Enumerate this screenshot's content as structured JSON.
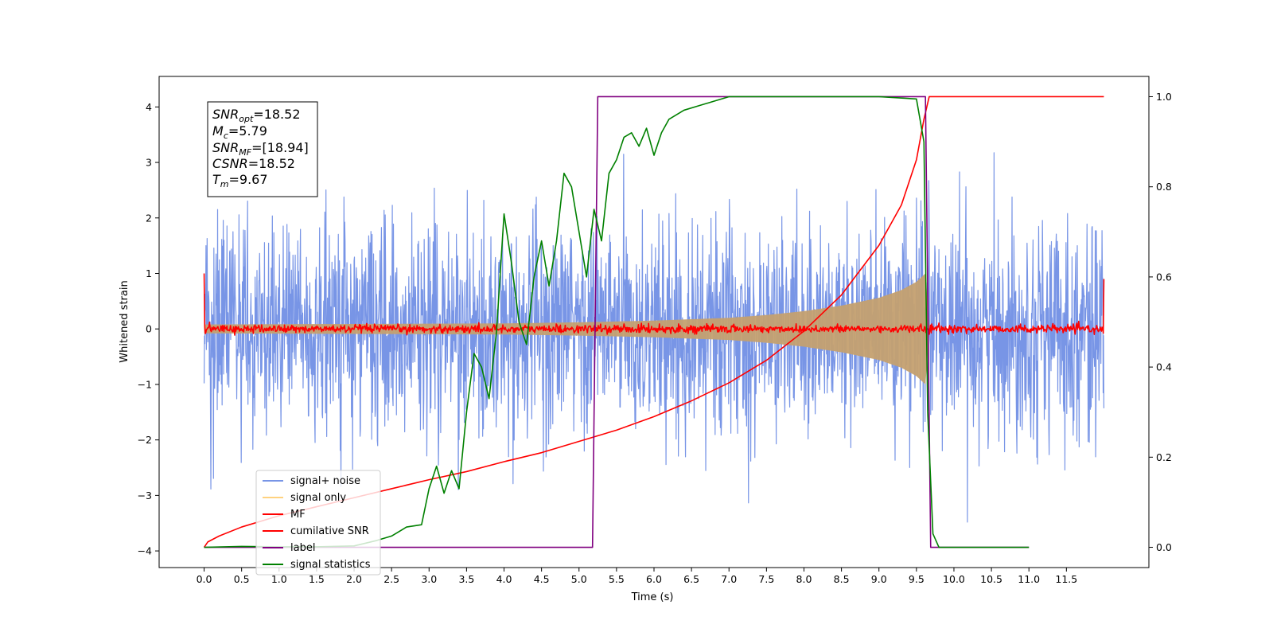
{
  "chart_data": {
    "type": "line",
    "title": "",
    "xlabel": "Time (s)",
    "ylabel": "Whitened strain",
    "xlim": [
      -0.6,
      12.6
    ],
    "ylim": [
      -4.3,
      4.55
    ],
    "y2lim": [
      -0.045,
      1.045
    ],
    "x_ticks": [
      0.0,
      0.5,
      1.0,
      1.5,
      2.0,
      2.5,
      3.0,
      3.5,
      4.0,
      4.5,
      5.0,
      5.5,
      6.0,
      6.5,
      7.0,
      7.5,
      8.0,
      8.5,
      9.0,
      9.5,
      10.0,
      10.5,
      11.0,
      11.5
    ],
    "x_tick_labels": [
      "0.0",
      "0.5",
      "1.0",
      "1.5",
      "2.0",
      "2.5",
      "3.0",
      "3.5",
      "4.0",
      "4.5",
      "5.0",
      "5.5",
      "6.0",
      "6.5",
      "7.0",
      "7.5",
      "8.0",
      "8.5",
      "9.0",
      "9.5",
      "10.0",
      "10.5",
      "11.0",
      "11.5"
    ],
    "y_ticks": [
      -4,
      -3,
      -2,
      -1,
      0,
      1,
      2,
      3,
      4
    ],
    "y_tick_labels": [
      "−4",
      "−3",
      "−2",
      "−1",
      "0",
      "1",
      "2",
      "3",
      "4"
    ],
    "y2_ticks": [
      0.0,
      0.2,
      0.4,
      0.6,
      0.8,
      1.0
    ],
    "y2_tick_labels": [
      "0.0",
      "0.2",
      "0.4",
      "0.6",
      "0.8",
      "1.0"
    ],
    "grid": false,
    "legend_position": "lower-left",
    "stats_box": {
      "snr_opt": {
        "base": "SNR",
        "sub": "opt",
        "value": "=18.52"
      },
      "mc": {
        "base": "M",
        "sub": "c",
        "value": "=5.79"
      },
      "snr_mf": {
        "base": "SNR",
        "sub": "MF",
        "value": "=[18.94]"
      },
      "csnr": {
        "base": "CSNR",
        "sub": "",
        "value": "=18.52"
      },
      "tm": {
        "base": "T",
        "sub": "m",
        "value": "=9.67"
      }
    },
    "series": [
      {
        "name": "signal+ noise",
        "color": "#7895e6",
        "axis": "left",
        "description_values": {
          "x_start": 0.0,
          "x_end": 12.0,
          "typical_range": [
            -2.0,
            2.2
          ],
          "peak_max": 4.15,
          "peak_min": -3.85
        }
      },
      {
        "name": "signal only",
        "color": "#c4a070",
        "axis": "left",
        "envelope_points": [
          [
            0.0,
            0.08
          ],
          [
            2.0,
            0.09
          ],
          [
            4.0,
            0.1
          ],
          [
            5.0,
            0.12
          ],
          [
            6.0,
            0.15
          ],
          [
            7.0,
            0.2
          ],
          [
            7.5,
            0.25
          ],
          [
            8.0,
            0.32
          ],
          [
            8.5,
            0.42
          ],
          [
            9.0,
            0.56
          ],
          [
            9.3,
            0.7
          ],
          [
            9.5,
            0.85
          ],
          [
            9.62,
            1.0
          ],
          [
            9.67,
            0.1
          ],
          [
            9.7,
            0.0
          ]
        ]
      },
      {
        "name": "MF",
        "color": "#ff0000",
        "axis": "left",
        "description_values": {
          "x_start": 0.0,
          "x_end": 12.0,
          "level": 0.0,
          "noise_amplitude": 0.06,
          "start_value": 1.0,
          "end_value": 0.9
        }
      },
      {
        "name": "cumilative SNR",
        "color": "#ff0000",
        "axis": "right",
        "points": [
          [
            0.0,
            0.0
          ],
          [
            0.05,
            0.012
          ],
          [
            0.2,
            0.025
          ],
          [
            0.5,
            0.045
          ],
          [
            1.0,
            0.07
          ],
          [
            1.5,
            0.09
          ],
          [
            2.0,
            0.11
          ],
          [
            2.5,
            0.13
          ],
          [
            3.0,
            0.15
          ],
          [
            3.5,
            0.168
          ],
          [
            4.0,
            0.19
          ],
          [
            4.5,
            0.21
          ],
          [
            5.0,
            0.235
          ],
          [
            5.5,
            0.26
          ],
          [
            6.0,
            0.29
          ],
          [
            6.5,
            0.325
          ],
          [
            7.0,
            0.365
          ],
          [
            7.5,
            0.415
          ],
          [
            8.0,
            0.48
          ],
          [
            8.5,
            0.56
          ],
          [
            9.0,
            0.67
          ],
          [
            9.3,
            0.76
          ],
          [
            9.5,
            0.86
          ],
          [
            9.6,
            0.95
          ],
          [
            9.67,
            1.0
          ],
          [
            12.0,
            1.0
          ]
        ]
      },
      {
        "name": "label",
        "color": "#800080",
        "axis": "right",
        "points": [
          [
            0.0,
            0.0
          ],
          [
            5.18,
            0.0
          ],
          [
            5.25,
            1.0
          ],
          [
            9.62,
            1.0
          ],
          [
            9.69,
            0.0
          ],
          [
            11.0,
            0.0
          ]
        ]
      },
      {
        "name": "signal statistics",
        "color": "#008000",
        "axis": "right",
        "points": [
          [
            0.0,
            0.0
          ],
          [
            0.5,
            0.002
          ],
          [
            1.0,
            0.001
          ],
          [
            1.5,
            0.001
          ],
          [
            2.0,
            0.003
          ],
          [
            2.3,
            0.015
          ],
          [
            2.5,
            0.025
          ],
          [
            2.7,
            0.045
          ],
          [
            2.9,
            0.05
          ],
          [
            3.0,
            0.13
          ],
          [
            3.1,
            0.18
          ],
          [
            3.2,
            0.12
          ],
          [
            3.3,
            0.17
          ],
          [
            3.4,
            0.13
          ],
          [
            3.5,
            0.3
          ],
          [
            3.6,
            0.43
          ],
          [
            3.7,
            0.4
          ],
          [
            3.8,
            0.33
          ],
          [
            3.9,
            0.48
          ],
          [
            4.0,
            0.74
          ],
          [
            4.1,
            0.63
          ],
          [
            4.2,
            0.5
          ],
          [
            4.3,
            0.45
          ],
          [
            4.4,
            0.6
          ],
          [
            4.5,
            0.68
          ],
          [
            4.6,
            0.58
          ],
          [
            4.7,
            0.68
          ],
          [
            4.8,
            0.83
          ],
          [
            4.9,
            0.8
          ],
          [
            5.0,
            0.7
          ],
          [
            5.1,
            0.6
          ],
          [
            5.2,
            0.75
          ],
          [
            5.3,
            0.68
          ],
          [
            5.4,
            0.83
          ],
          [
            5.5,
            0.86
          ],
          [
            5.6,
            0.91
          ],
          [
            5.7,
            0.92
          ],
          [
            5.8,
            0.89
          ],
          [
            5.9,
            0.93
          ],
          [
            6.0,
            0.87
          ],
          [
            6.1,
            0.92
          ],
          [
            6.2,
            0.95
          ],
          [
            6.4,
            0.97
          ],
          [
            6.6,
            0.98
          ],
          [
            6.8,
            0.99
          ],
          [
            7.0,
            1.0
          ],
          [
            8.0,
            1.0
          ],
          [
            9.0,
            1.0
          ],
          [
            9.5,
            0.995
          ],
          [
            9.6,
            0.9
          ],
          [
            9.65,
            0.3
          ],
          [
            9.72,
            0.03
          ],
          [
            9.8,
            0.0
          ],
          [
            11.0,
            0.0
          ]
        ]
      }
    ]
  }
}
